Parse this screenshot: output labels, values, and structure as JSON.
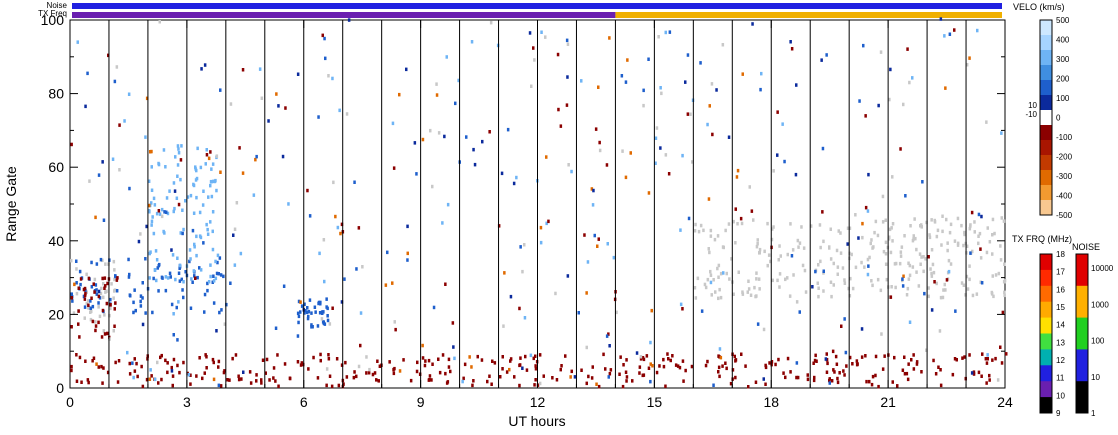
{
  "chart_data": {
    "type": "heatmap",
    "xlabel": "UT hours",
    "ylabel": "Range Gate",
    "xlim": [
      0,
      24
    ],
    "ylim": [
      0,
      100
    ],
    "x_ticks": [
      "0",
      "3",
      "6",
      "9",
      "12",
      "15",
      "18",
      "21",
      "24"
    ],
    "y_ticks": [
      "0",
      "20",
      "40",
      "60",
      "80",
      "100"
    ],
    "scan_boundaries_hours": [
      1,
      2,
      3,
      4,
      5,
      6,
      7,
      8,
      9,
      10,
      11,
      12,
      13,
      14,
      15,
      16,
      17,
      18,
      19,
      20,
      21,
      22,
      23
    ],
    "top_bars": {
      "noise_label": "Noise",
      "txfrq_label": "TX Freq",
      "noise_color": "#2020e0",
      "txfrq_color_before": "#6a1fb0",
      "txfrq_color_after": "#f0b000",
      "txfrq_switch_hour": 14
    },
    "velocity_colorbar": {
      "title": "VELO (km/s)",
      "ticks": [
        "500",
        "400",
        "300",
        "200",
        "100",
        "0",
        "-100",
        "-200",
        "-300",
        "-400",
        "-500"
      ],
      "inner_ticks": [
        "10",
        "-10"
      ],
      "colors": [
        "#cde8ff",
        "#a6d4ff",
        "#6eb4f5",
        "#3f8ee0",
        "#1e5fcc",
        "#0b2a9c",
        "#ffffff",
        "#8b0000",
        "#a81500",
        "#c23a00",
        "#e06a00",
        "#f39a30",
        "#f8c890"
      ]
    },
    "txfreq_colorbar": {
      "title": "TX FRQ (MHz)",
      "ticks": [
        "18",
        "17",
        "16",
        "15",
        "14",
        "13",
        "12",
        "11",
        "10",
        "9"
      ],
      "colors": [
        "#e00000",
        "#ff2a00",
        "#ff6a00",
        "#ffaa00",
        "#ffe000",
        "#40e040",
        "#00b0b0",
        "#2020e0",
        "#6a1fb0",
        "#000000"
      ]
    },
    "noise_colorbar": {
      "title": "NOISE",
      "ticks": [
        "10000",
        "1000",
        "100",
        "10",
        "1"
      ],
      "colors": [
        "#e00000",
        "#ffb000",
        "#20d020",
        "#2020e0",
        "#000000"
      ]
    },
    "features": [
      {
        "name": "ground scatter band",
        "color": "#c8c8c8",
        "x_range": [
          0,
          1.2
        ],
        "y_range": [
          14,
          36
        ]
      },
      {
        "name": "ground scatter band",
        "color": "#c8c8c8",
        "x_range": [
          16,
          24
        ],
        "y_range": [
          24,
          46
        ]
      },
      {
        "name": "blue echo arc",
        "color": "#1e5fcc",
        "x_range": [
          0,
          4.1
        ],
        "y_range": [
          20,
          35
        ]
      },
      {
        "name": "blue echo plume",
        "color": "#6eb4f5",
        "x_range": [
          2.0,
          3.8
        ],
        "y_range": [
          28,
          66
        ]
      },
      {
        "name": "blue patch",
        "color": "#1e5fcc",
        "x_range": [
          5.8,
          6.6
        ],
        "y_range": [
          16,
          24
        ]
      },
      {
        "name": "near-range red band",
        "color": "#8b0000",
        "x_range": [
          0,
          24
        ],
        "y_range": [
          0,
          9
        ]
      },
      {
        "name": "early red cluster",
        "color": "#8b0000",
        "x_range": [
          0,
          1.2
        ],
        "y_range": [
          13,
          31
        ]
      }
    ]
  },
  "icons": {
    "plot_frame": "rectangle",
    "scan_lines": "vertical-lines"
  }
}
